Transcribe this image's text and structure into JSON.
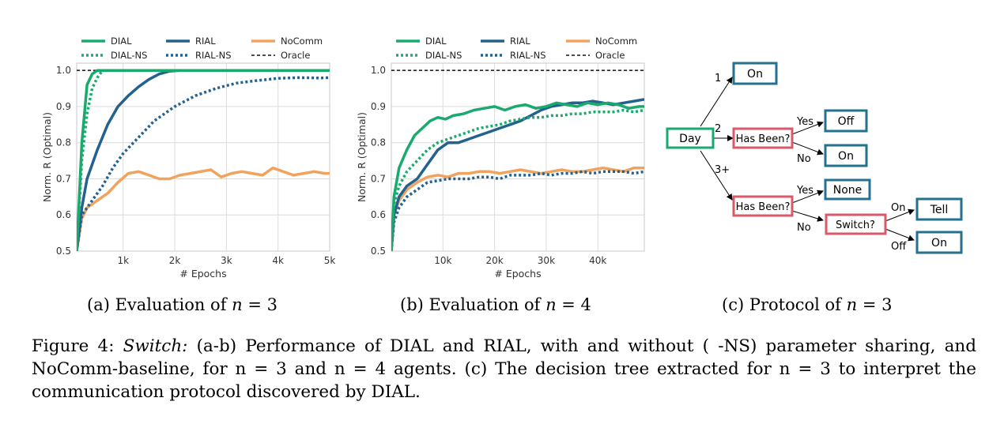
{
  "colors": {
    "DIAL": "#1aaa6e",
    "RIAL": "#23618f",
    "NoComm": "#f0a35e",
    "Oracle": "#111111",
    "tree_green": "#1aaa6e",
    "tree_red": "#d9596a",
    "tree_blue": "#23708f"
  },
  "legend": {
    "entries": [
      {
        "name": "DIAL",
        "key": "DIAL",
        "dash": "solid"
      },
      {
        "name": "RIAL",
        "key": "RIAL",
        "dash": "solid"
      },
      {
        "name": "NoComm",
        "key": "NoComm",
        "dash": "solid"
      },
      {
        "name": "DIAL-NS",
        "key": "DIAL",
        "dash": "dotted"
      },
      {
        "name": "RIAL-NS",
        "key": "RIAL",
        "dash": "dotted"
      },
      {
        "name": "Oracle",
        "key": "Oracle",
        "dash": "dashed"
      }
    ]
  },
  "chart_data": [
    {
      "type": "line",
      "id": "a",
      "xlabel": "# Epochs",
      "ylabel": "Norm. R (Optimal)",
      "xlim": [
        100,
        5000
      ],
      "ylim": [
        0.5,
        1.02
      ],
      "xticks": [
        1000,
        2000,
        3000,
        4000,
        5000
      ],
      "xtick_labels": [
        "1k",
        "2k",
        "3k",
        "4k",
        "5k"
      ],
      "yticks": [
        0.5,
        0.6,
        0.7,
        0.8,
        0.9,
        1.0
      ],
      "ytick_labels": [
        "0.5",
        "0.6",
        "0.7",
        "0.8",
        "0.9",
        "1.0"
      ],
      "grid": true,
      "legend_position": "top",
      "oracle": 1.0,
      "series": [
        {
          "name": "DIAL",
          "style": "solid",
          "x": [
            100,
            200,
            300,
            400,
            500,
            600,
            800,
            1000,
            2000,
            3000,
            4000,
            5000
          ],
          "y": [
            0.5,
            0.8,
            0.96,
            0.99,
            1.0,
            1.0,
            1.0,
            1.0,
            1.0,
            1.0,
            1.0,
            1.0
          ]
        },
        {
          "name": "DIAL-NS",
          "style": "dotted",
          "x": [
            100,
            200,
            300,
            400,
            500,
            600,
            700,
            900,
            2000,
            3000,
            4000,
            5000
          ],
          "y": [
            0.5,
            0.75,
            0.88,
            0.95,
            0.98,
            1.0,
            1.0,
            1.0,
            1.0,
            1.0,
            1.0,
            1.0
          ]
        },
        {
          "name": "RIAL",
          "style": "solid",
          "x": [
            100,
            200,
            300,
            500,
            700,
            900,
            1100,
            1300,
            1500,
            1700,
            1900,
            2100,
            2500,
            3000,
            4000,
            5000
          ],
          "y": [
            0.5,
            0.62,
            0.7,
            0.78,
            0.85,
            0.9,
            0.93,
            0.955,
            0.975,
            0.99,
            0.998,
            1.0,
            1.0,
            1.0,
            1.0,
            1.0
          ]
        },
        {
          "name": "RIAL-NS",
          "style": "dotted",
          "x": [
            100,
            200,
            400,
            600,
            800,
            1000,
            1200,
            1400,
            1600,
            1800,
            2000,
            2400,
            2800,
            3200,
            3600,
            4000,
            4400,
            4800,
            5000
          ],
          "y": [
            0.5,
            0.6,
            0.64,
            0.68,
            0.73,
            0.77,
            0.8,
            0.83,
            0.86,
            0.88,
            0.9,
            0.93,
            0.95,
            0.965,
            0.972,
            0.978,
            0.98,
            0.979,
            0.98
          ]
        },
        {
          "name": "NoComm",
          "style": "solid",
          "x": [
            100,
            200,
            300,
            500,
            700,
            900,
            1100,
            1300,
            1500,
            1700,
            1900,
            2100,
            2300,
            2500,
            2700,
            2900,
            3100,
            3300,
            3500,
            3700,
            3900,
            4100,
            4300,
            4500,
            4700,
            4900,
            5000
          ],
          "y": [
            0.5,
            0.59,
            0.62,
            0.64,
            0.66,
            0.69,
            0.715,
            0.72,
            0.71,
            0.7,
            0.7,
            0.71,
            0.715,
            0.72,
            0.725,
            0.705,
            0.715,
            0.72,
            0.715,
            0.71,
            0.73,
            0.72,
            0.71,
            0.715,
            0.72,
            0.715,
            0.715
          ]
        }
      ]
    },
    {
      "type": "line",
      "id": "b",
      "xlabel": "# Epochs",
      "ylabel": "Norm. R (Optimal)",
      "xlim": [
        0,
        49000
      ],
      "ylim": [
        0.5,
        1.02
      ],
      "xticks": [
        10000,
        20000,
        30000,
        40000
      ],
      "xtick_labels": [
        "10k",
        "20k",
        "30k",
        "40k"
      ],
      "yticks": [
        0.5,
        0.6,
        0.7,
        0.8,
        0.9,
        1.0
      ],
      "ytick_labels": [
        "0.5",
        "0.6",
        "0.7",
        "0.8",
        "0.9",
        "1.0"
      ],
      "grid": true,
      "legend_position": "top",
      "oracle": 1.0,
      "series": [
        {
          "name": "DIAL",
          "style": "solid",
          "x": [
            0,
            500,
            1500,
            3000,
            4500,
            6000,
            7500,
            9000,
            10500,
            12000,
            14000,
            16000,
            18000,
            20000,
            22000,
            24000,
            26000,
            28000,
            30000,
            32000,
            34000,
            36000,
            38000,
            40000,
            42000,
            44000,
            46000,
            48000,
            49000
          ],
          "y": [
            0.5,
            0.65,
            0.73,
            0.78,
            0.82,
            0.84,
            0.86,
            0.87,
            0.865,
            0.875,
            0.88,
            0.89,
            0.895,
            0.9,
            0.89,
            0.9,
            0.905,
            0.895,
            0.9,
            0.91,
            0.905,
            0.9,
            0.91,
            0.905,
            0.91,
            0.905,
            0.895,
            0.9,
            0.9
          ]
        },
        {
          "name": "DIAL-NS",
          "style": "dotted",
          "x": [
            0,
            500,
            1500,
            3000,
            5000,
            7000,
            9000,
            11000,
            13000,
            15000,
            17000,
            19000,
            21000,
            23000,
            25000,
            27000,
            29000,
            31000,
            33000,
            35000,
            37000,
            39000,
            41000,
            43000,
            45000,
            47000,
            49000
          ],
          "y": [
            0.5,
            0.63,
            0.68,
            0.72,
            0.75,
            0.78,
            0.8,
            0.81,
            0.82,
            0.83,
            0.84,
            0.845,
            0.85,
            0.86,
            0.865,
            0.87,
            0.87,
            0.875,
            0.875,
            0.88,
            0.88,
            0.885,
            0.885,
            0.885,
            0.89,
            0.885,
            0.89
          ]
        },
        {
          "name": "RIAL",
          "style": "solid",
          "x": [
            0,
            500,
            1500,
            3000,
            5000,
            7000,
            9000,
            11000,
            13000,
            15000,
            17000,
            19000,
            21000,
            23000,
            25000,
            27000,
            29000,
            31000,
            33000,
            35000,
            37000,
            39000,
            41000,
            43000,
            45000,
            47000,
            49000
          ],
          "y": [
            0.5,
            0.6,
            0.65,
            0.68,
            0.7,
            0.74,
            0.78,
            0.8,
            0.8,
            0.81,
            0.82,
            0.83,
            0.84,
            0.85,
            0.86,
            0.875,
            0.89,
            0.9,
            0.905,
            0.91,
            0.91,
            0.915,
            0.91,
            0.905,
            0.91,
            0.915,
            0.92
          ]
        },
        {
          "name": "RIAL-NS",
          "style": "dotted",
          "x": [
            0,
            500,
            1500,
            3000,
            5000,
            7000,
            9000,
            11000,
            13000,
            15000,
            17000,
            19000,
            21000,
            23000,
            25000,
            27000,
            29000,
            31000,
            33000,
            35000,
            37000,
            39000,
            41000,
            43000,
            45000,
            47000,
            49000
          ],
          "y": [
            0.5,
            0.58,
            0.62,
            0.65,
            0.67,
            0.69,
            0.695,
            0.7,
            0.7,
            0.7,
            0.705,
            0.705,
            0.7,
            0.71,
            0.71,
            0.71,
            0.715,
            0.71,
            0.715,
            0.715,
            0.72,
            0.715,
            0.72,
            0.72,
            0.72,
            0.715,
            0.72
          ]
        },
        {
          "name": "NoComm",
          "style": "solid",
          "x": [
            0,
            500,
            1500,
            3000,
            5000,
            7000,
            9000,
            11000,
            13000,
            15000,
            17000,
            19000,
            21000,
            23000,
            25000,
            27000,
            29000,
            31000,
            33000,
            35000,
            37000,
            39000,
            41000,
            43000,
            45000,
            47000,
            49000
          ],
          "y": [
            0.5,
            0.6,
            0.64,
            0.67,
            0.69,
            0.705,
            0.71,
            0.705,
            0.715,
            0.715,
            0.72,
            0.72,
            0.715,
            0.72,
            0.725,
            0.72,
            0.715,
            0.72,
            0.725,
            0.72,
            0.72,
            0.725,
            0.73,
            0.725,
            0.72,
            0.73,
            0.73
          ]
        }
      ]
    }
  ],
  "tree": {
    "nodes": {
      "day": "Day",
      "on1": "On",
      "has_been_1": "Has Been?",
      "off": "Off",
      "on2": "On",
      "has_been_2": "Has Been?",
      "none": "None",
      "switch": "Switch?",
      "tell": "Tell",
      "on3": "On"
    },
    "edges": {
      "e1": "1",
      "e2": "2",
      "e3": "3+",
      "yes1": "Yes",
      "no1": "No",
      "yes2": "Yes",
      "no2": "No",
      "on": "On",
      "off": "Off"
    }
  },
  "subcaptions": {
    "a_prefix": "(a) Evaluation of ",
    "a_var": "n",
    "a_eq": " = 3",
    "b_prefix": "(b) Evaluation of ",
    "b_var": "n",
    "b_eq": " = 4",
    "c_prefix": "(c) Protocol of ",
    "c_var": "n",
    "c_eq": " = 3"
  },
  "caption": {
    "label": "Figure 4: ",
    "name": "Switch:",
    "text": " (a-b) Performance of DIAL and RIAL, with and without ( -NS) parameter sharing, and NoComm-baseline, for n = 3 and n = 4 agents. (c) The decision tree extracted for n = 3 to interpret the communication protocol discovered by DIAL."
  }
}
